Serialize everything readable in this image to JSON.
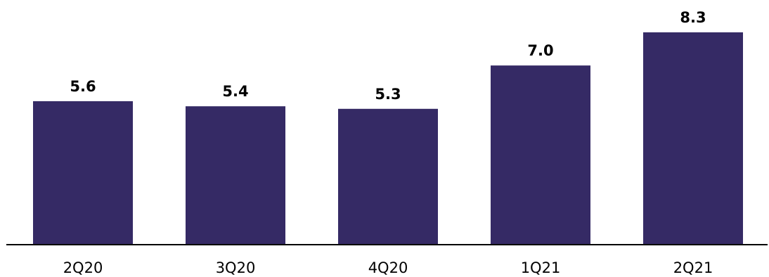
{
  "chart_data": {
    "type": "bar",
    "categories": [
      "2Q20",
      "3Q20",
      "4Q20",
      "1Q21",
      "2Q21"
    ],
    "values": [
      5.6,
      5.4,
      5.3,
      7.0,
      8.3
    ],
    "value_labels": [
      "5.6",
      "5.4",
      "5.3",
      "7.0",
      "8.3"
    ],
    "title": "",
    "xlabel": "",
    "ylabel": "",
    "ylim": [
      0,
      8.3
    ],
    "grid": false,
    "legend": "none",
    "colors": {
      "bar": "#352a65",
      "axis": "#000000",
      "label": "#000000"
    }
  }
}
